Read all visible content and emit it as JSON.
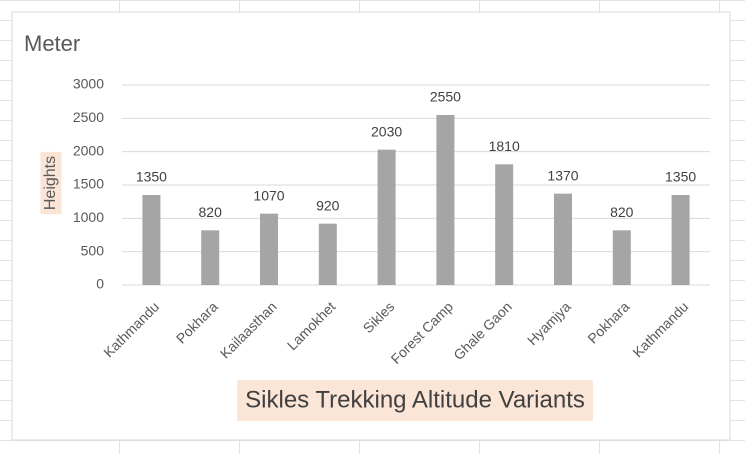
{
  "chart_data": {
    "type": "bar",
    "title": "Meter",
    "y_label": "Heights",
    "x_label": "Sikles Trekking Altitude Variants",
    "categories": [
      "Kathmandu",
      "Pokhara",
      "Kailaasthan",
      "Lamokhet",
      "Sikles",
      "Forest Camp",
      "Ghale Gaon",
      "Hyamjya",
      "Pokhara",
      "Kathmandu"
    ],
    "values": [
      1350,
      820,
      1070,
      920,
      2030,
      2550,
      1810,
      1370,
      820,
      1350
    ],
    "color": "#a5a5a5",
    "ylim": [
      0,
      3000
    ],
    "yticks": [
      0,
      500,
      1000,
      1500,
      2000,
      2500,
      3000
    ],
    "grid": true
  }
}
